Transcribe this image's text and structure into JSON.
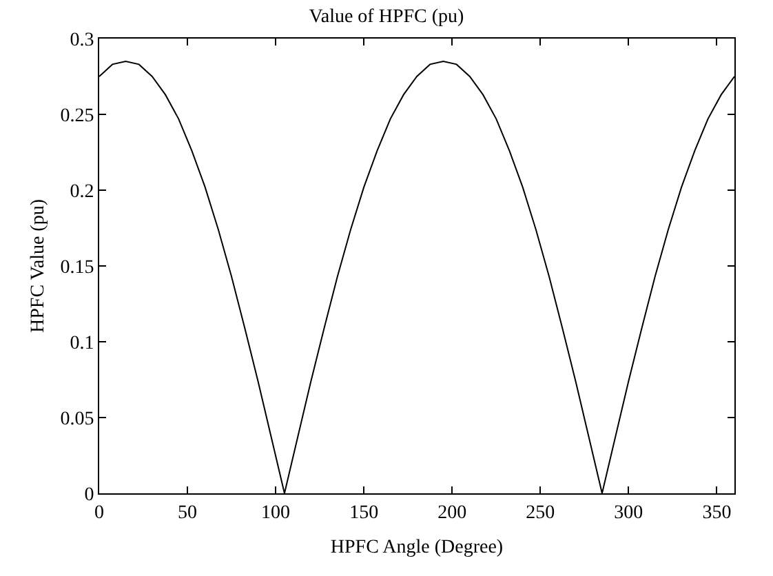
{
  "chart_data": {
    "type": "line",
    "title": "Value of HPFC (pu)",
    "xlabel": "HPFC Angle (Degree)",
    "ylabel": "HPFC Value (pu)",
    "x": [
      0,
      7.5,
      15,
      22.5,
      30,
      37.5,
      45,
      52.5,
      60,
      67.5,
      75,
      82.5,
      90,
      97.5,
      105,
      112.5,
      120,
      127.5,
      135,
      142.5,
      150,
      157.5,
      165,
      172.5,
      180,
      187.5,
      195,
      202.5,
      210,
      217.5,
      225,
      232.5,
      240,
      247.5,
      255,
      262.5,
      270,
      277.5,
      285,
      292.5,
      300,
      307.5,
      315,
      322.5,
      330,
      337.5,
      345,
      352.5,
      360
    ],
    "series": [
      {
        "color": "#000000",
        "values": [
          0.275,
          0.283,
          0.285,
          0.283,
          0.275,
          0.263,
          0.247,
          0.226,
          0.202,
          0.174,
          0.143,
          0.109,
          0.074,
          0.037,
          0,
          0.037,
          0.074,
          0.109,
          0.143,
          0.174,
          0.202,
          0.226,
          0.247,
          0.263,
          0.275,
          0.283,
          0.285,
          0.283,
          0.275,
          0.263,
          0.247,
          0.226,
          0.202,
          0.174,
          0.143,
          0.109,
          0.074,
          0.037,
          0,
          0.037,
          0.074,
          0.109,
          0.143,
          0.174,
          0.202,
          0.226,
          0.247,
          0.263,
          0.275
        ]
      }
    ],
    "xlim": [
      0,
      360
    ],
    "xticks": [
      0,
      50,
      100,
      150,
      200,
      250,
      300,
      350
    ],
    "ylim": [
      0,
      0.3
    ],
    "yticks": [
      0,
      0.05,
      0.1,
      0.15,
      0.2,
      0.25,
      0.3
    ],
    "marker": "none",
    "line_style": "solid"
  }
}
